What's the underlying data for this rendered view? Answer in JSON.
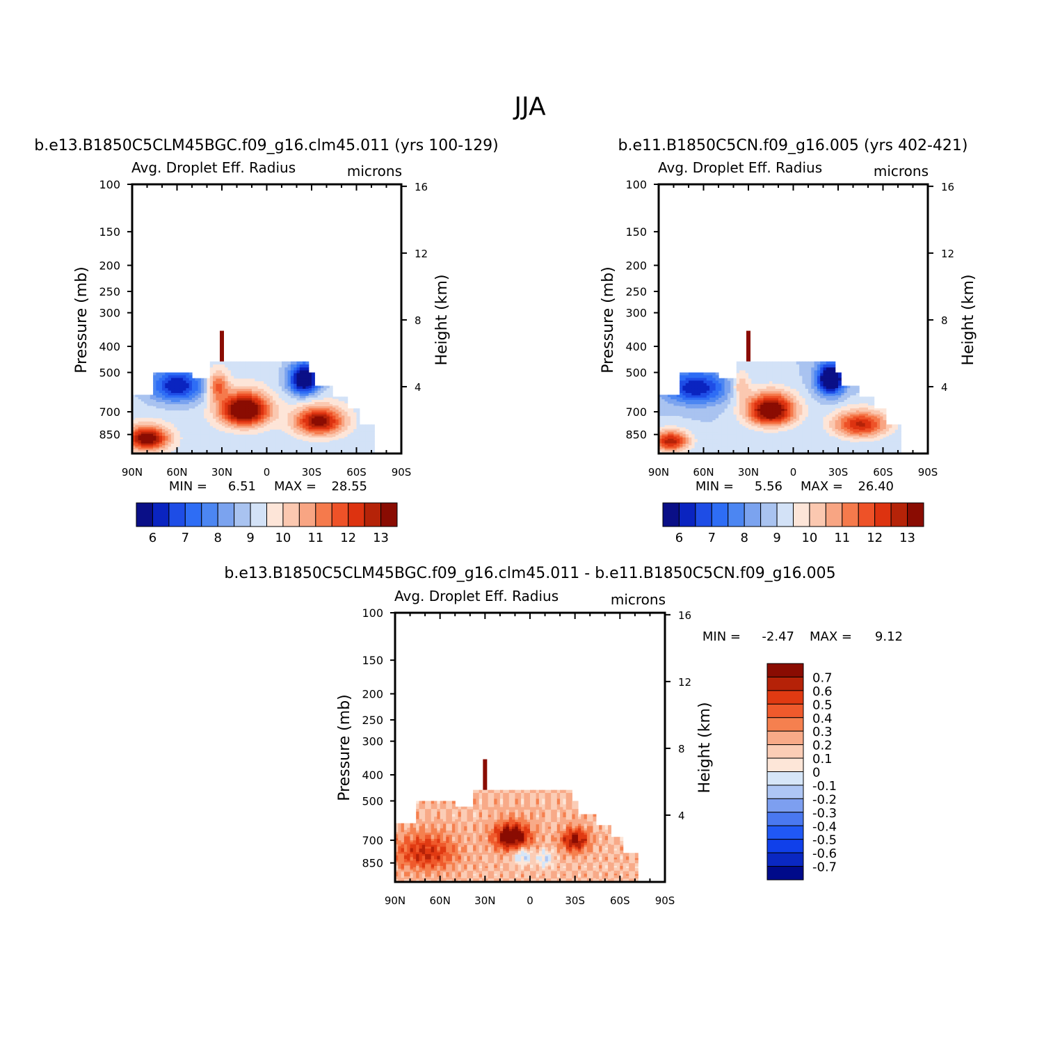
{
  "page_title": "JJA",
  "colors": {
    "abs_palette": [
      "#0a0f87",
      "#0a24c0",
      "#1e4de6",
      "#2e6df5",
      "#4c86f2",
      "#7ba3ef",
      "#a9c3f0",
      "#d3e2f7",
      "#fde5d8",
      "#fbc8b0",
      "#f8a583",
      "#f57a4c",
      "#ee5228",
      "#dd3310",
      "#b52308",
      "#8a0c02"
    ],
    "diff_palette": [
      "#000a8a",
      "#0a28c2",
      "#1040ea",
      "#2058f5",
      "#4a78f0",
      "#7d9ff0",
      "#aec6f4",
      "#d6e6f8",
      "#fde6d8",
      "#fbcdb6",
      "#f8aa88",
      "#f5804f",
      "#ef5a2c",
      "#e03a12",
      "#b52208",
      "#8a0c02"
    ]
  },
  "chart_data": [
    {
      "type": "heatmap",
      "id": "case1",
      "case_title": "b.e13.B1850C5CLM45BGC.f09_g16.clm45.011 (yrs 100-129)",
      "var_label": "Avg. Droplet Eff. Radius",
      "units": "microns",
      "ylabel": "Pressure (mb)",
      "y2label": "Height (km)",
      "y_ticks": [
        "100",
        "150",
        "200",
        "250",
        "300",
        "400",
        "500",
        "700",
        "850"
      ],
      "y_values": [
        100,
        150,
        200,
        250,
        300,
        400,
        500,
        700,
        850
      ],
      "y2_ticks": [
        "16",
        "12",
        "8",
        "4"
      ],
      "y2_values": [
        16,
        12,
        8,
        4
      ],
      "x_ticks": [
        "90N",
        "60N",
        "30N",
        "0",
        "30S",
        "60S",
        "90S"
      ],
      "x_values": [
        90,
        60,
        30,
        0,
        -30,
        -60,
        -90
      ],
      "xlim": [
        90,
        -90
      ],
      "ylim": [
        100,
        1000
      ],
      "min_label": "MIN =",
      "min_value": "6.51",
      "max_label": "MAX =",
      "max_value": "28.55",
      "colorbar_labels": [
        "6",
        "7",
        "8",
        "9",
        "10",
        "11",
        "12",
        "13"
      ],
      "levels": [
        5.75,
        6,
        6.5,
        7,
        7.5,
        8,
        8.5,
        9,
        9.5,
        10,
        10.5,
        11,
        11.5,
        12,
        12.5,
        13
      ],
      "cloud_top_mb": 455,
      "spike": {
        "lat": 30,
        "top_mb": 350
      },
      "blobs": [
        {
          "lat": 15,
          "p": 690,
          "amp": 5.5,
          "sx": 16,
          "sy": 95
        },
        {
          "lat": -35,
          "p": 760,
          "amp": 4.2,
          "sx": 16,
          "sy": 90
        },
        {
          "lat": 80,
          "p": 880,
          "amp": 4.5,
          "sx": 14,
          "sy": 90
        },
        {
          "lat": 33,
          "p": 560,
          "amp": 2.5,
          "sx": 7,
          "sy": 70
        }
      ],
      "lows": [
        {
          "lat": 60,
          "p": 560,
          "amp": 3.2,
          "sx": 18,
          "sy": 80
        },
        {
          "lat": -25,
          "p": 530,
          "amp": 4.5,
          "sx": 10,
          "sy": 70
        }
      ],
      "base": 9.2
    },
    {
      "type": "heatmap",
      "id": "case2",
      "case_title": "b.e11.B1850C5CN.f09_g16.005 (yrs 402-421)",
      "var_label": "Avg. Droplet Eff. Radius",
      "units": "microns",
      "ylabel": "Pressure (mb)",
      "y2label": "Height (km)",
      "y_ticks": [
        "100",
        "150",
        "200",
        "250",
        "300",
        "400",
        "500",
        "700",
        "850"
      ],
      "y_values": [
        100,
        150,
        200,
        250,
        300,
        400,
        500,
        700,
        850
      ],
      "y2_ticks": [
        "16",
        "12",
        "8",
        "4"
      ],
      "y2_values": [
        16,
        12,
        8,
        4
      ],
      "x_ticks": [
        "90N",
        "60N",
        "30N",
        "0",
        "30S",
        "60S",
        "90S"
      ],
      "x_values": [
        90,
        60,
        30,
        0,
        -30,
        -60,
        -90
      ],
      "xlim": [
        90,
        -90
      ],
      "ylim": [
        100,
        1000
      ],
      "min_label": "MIN =",
      "min_value": "5.56",
      "max_label": "MAX =",
      "max_value": "26.40",
      "colorbar_labels": [
        "6",
        "7",
        "8",
        "9",
        "10",
        "11",
        "12",
        "13"
      ],
      "levels": [
        5.75,
        6,
        6.5,
        7,
        7.5,
        8,
        8.5,
        9,
        9.5,
        10,
        10.5,
        11,
        11.5,
        12,
        12.5,
        13
      ],
      "cloud_top_mb": 455,
      "spike": {
        "lat": 30,
        "top_mb": 350
      },
      "blobs": [
        {
          "lat": 15,
          "p": 690,
          "amp": 5.2,
          "sx": 16,
          "sy": 95
        },
        {
          "lat": -45,
          "p": 780,
          "amp": 3.6,
          "sx": 18,
          "sy": 90
        },
        {
          "lat": 82,
          "p": 900,
          "amp": 3.8,
          "sx": 12,
          "sy": 80
        },
        {
          "lat": 35,
          "p": 560,
          "amp": 1.5,
          "sx": 6,
          "sy": 70
        }
      ],
      "lows": [
        {
          "lat": 65,
          "p": 570,
          "amp": 3.0,
          "sx": 20,
          "sy": 80
        },
        {
          "lat": -25,
          "p": 530,
          "amp": 4.8,
          "sx": 9,
          "sy": 70
        }
      ],
      "base": 9.0
    },
    {
      "type": "heatmap",
      "id": "diff",
      "case_title": "b.e13.B1850C5CLM45BGC.f09_g16.clm45.011 - b.e11.B1850C5CN.f09_g16.005",
      "var_label": "Avg. Droplet Eff. Radius",
      "units": "microns",
      "ylabel": "Pressure (mb)",
      "y2label": "Height (km)",
      "y_ticks": [
        "100",
        "150",
        "200",
        "250",
        "300",
        "400",
        "500",
        "700",
        "850"
      ],
      "y_values": [
        100,
        150,
        200,
        250,
        300,
        400,
        500,
        700,
        850
      ],
      "y2_ticks": [
        "16",
        "12",
        "8",
        "4"
      ],
      "y2_values": [
        16,
        12,
        8,
        4
      ],
      "x_ticks": [
        "90N",
        "60N",
        "30N",
        "0",
        "30S",
        "60S",
        "90S"
      ],
      "x_values": [
        90,
        60,
        30,
        0,
        -30,
        -60,
        -90
      ],
      "xlim": [
        90,
        -90
      ],
      "ylim": [
        100,
        1000
      ],
      "min_label": "MIN =",
      "min_value": "-2.47",
      "max_label": "MAX =",
      "max_value": "9.12",
      "colorbar_labels": [
        "0.7",
        "0.6",
        "0.5",
        "0.4",
        "0.3",
        "0.2",
        "0.1",
        "0",
        "-0.1",
        "-0.2",
        "-0.3",
        "-0.4",
        "-0.5",
        "-0.6",
        "-0.7"
      ],
      "levels": [
        -0.75,
        -0.7,
        -0.6,
        -0.5,
        -0.4,
        -0.3,
        -0.2,
        -0.1,
        0,
        0.1,
        0.2,
        0.3,
        0.4,
        0.5,
        0.6,
        0.7
      ],
      "cloud_top_mb": 455,
      "spike": {
        "lat": 30,
        "top_mb": 350
      },
      "blobs": [
        {
          "lat": 12,
          "p": 680,
          "amp": 0.7,
          "sx": 12,
          "sy": 80
        },
        {
          "lat": -30,
          "p": 700,
          "amp": 0.55,
          "sx": 9,
          "sy": 70
        },
        {
          "lat": 70,
          "p": 780,
          "amp": 0.4,
          "sx": 20,
          "sy": 120
        }
      ],
      "lows": [
        {
          "lat": 5,
          "p": 800,
          "amp": 0.35,
          "sx": 6,
          "sy": 60
        },
        {
          "lat": -10,
          "p": 820,
          "amp": 0.3,
          "sx": 5,
          "sy": 60
        }
      ],
      "base": 0.2
    }
  ]
}
